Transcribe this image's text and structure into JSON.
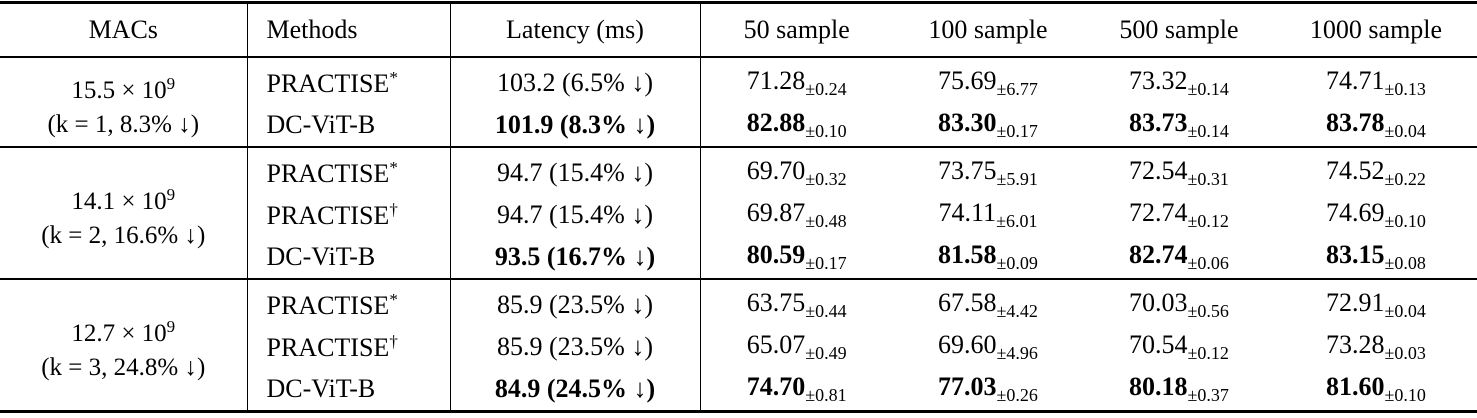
{
  "table": {
    "headers": [
      "MACs",
      "Methods",
      "Latency (ms)",
      "50 sample",
      "100 sample",
      "500 sample",
      "1000 sample"
    ],
    "groups": [
      {
        "macs": "15.5 × 10",
        "macs_exp": "9",
        "macs_note": "(k = 1, 8.3% ↓)",
        "rows": [
          {
            "method": "PRACTISE",
            "method_mark": "*",
            "latency": "103.2 (6.5% ↓)",
            "bold": false,
            "cells": [
              {
                "mean": "71.28",
                "std": "±0.24"
              },
              {
                "mean": "75.69",
                "std": "±6.77"
              },
              {
                "mean": "73.32",
                "std": "±0.14"
              },
              {
                "mean": "74.71",
                "std": "±0.13"
              }
            ]
          },
          {
            "method": "DC-ViT-B",
            "latency": "101.9 (8.3% ↓)",
            "bold": true,
            "cells": [
              {
                "mean": "82.88",
                "std": "±0.10"
              },
              {
                "mean": "83.30",
                "std": "±0.17"
              },
              {
                "mean": "83.73",
                "std": "±0.14"
              },
              {
                "mean": "83.78",
                "std": "±0.04"
              }
            ]
          }
        ]
      },
      {
        "macs": "14.1 × 10",
        "macs_exp": "9",
        "macs_note": "(k = 2, 16.6% ↓)",
        "rows": [
          {
            "method": "PRACTISE",
            "method_mark": "*",
            "latency": "94.7 (15.4% ↓)",
            "bold": false,
            "cells": [
              {
                "mean": "69.70",
                "std": "±0.32"
              },
              {
                "mean": "73.75",
                "std": "±5.91"
              },
              {
                "mean": "72.54",
                "std": "±0.31"
              },
              {
                "mean": "74.52",
                "std": "±0.22"
              }
            ]
          },
          {
            "method": "PRACTISE",
            "method_mark": "†",
            "latency": "94.7 (15.4% ↓)",
            "bold": false,
            "cells": [
              {
                "mean": "69.87",
                "std": "±0.48"
              },
              {
                "mean": "74.11",
                "std": "±6.01"
              },
              {
                "mean": "72.74",
                "std": "±0.12"
              },
              {
                "mean": "74.69",
                "std": "±0.10"
              }
            ]
          },
          {
            "method": "DC-ViT-B",
            "latency": "93.5 (16.7% ↓)",
            "bold": true,
            "cells": [
              {
                "mean": "80.59",
                "std": "±0.17"
              },
              {
                "mean": "81.58",
                "std": "±0.09"
              },
              {
                "mean": "82.74",
                "std": "±0.06"
              },
              {
                "mean": "83.15",
                "std": "±0.08"
              }
            ]
          }
        ]
      },
      {
        "macs": "12.7 × 10",
        "macs_exp": "9",
        "macs_note": "(k = 3, 24.8% ↓)",
        "rows": [
          {
            "method": "PRACTISE",
            "method_mark": "*",
            "latency": "85.9 (23.5% ↓)",
            "bold": false,
            "cells": [
              {
                "mean": "63.75",
                "std": "±0.44"
              },
              {
                "mean": "67.58",
                "std": "±4.42"
              },
              {
                "mean": "70.03",
                "std": "±0.56"
              },
              {
                "mean": "72.91",
                "std": "±0.04"
              }
            ]
          },
          {
            "method": "PRACTISE",
            "method_mark": "†",
            "latency": "85.9 (23.5% ↓)",
            "bold": false,
            "cells": [
              {
                "mean": "65.07",
                "std": "±0.49"
              },
              {
                "mean": "69.60",
                "std": "±4.96"
              },
              {
                "mean": "70.54",
                "std": "±0.12"
              },
              {
                "mean": "73.28",
                "std": "±0.03"
              }
            ]
          },
          {
            "method": "DC-ViT-B",
            "latency": "84.9 (24.5% ↓)",
            "bold": true,
            "cells": [
              {
                "mean": "74.70",
                "std": "±0.81"
              },
              {
                "mean": "77.03",
                "std": "±0.26"
              },
              {
                "mean": "80.18",
                "std": "±0.37"
              },
              {
                "mean": "81.60",
                "std": "±0.10"
              }
            ]
          }
        ]
      }
    ]
  }
}
